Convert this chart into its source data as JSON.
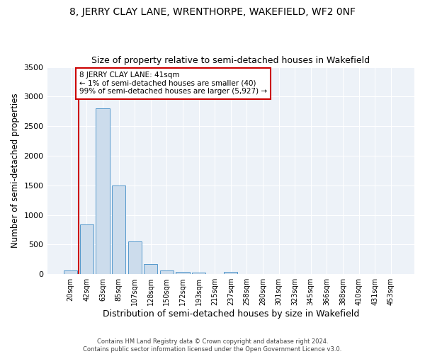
{
  "title": "8, JERRY CLAY LANE, WRENTHORPE, WAKEFIELD, WF2 0NF",
  "subtitle": "Size of property relative to semi-detached houses in Wakefield",
  "xlabel": "Distribution of semi-detached houses by size in Wakefield",
  "ylabel": "Number of semi-detached properties",
  "categories": [
    "20sqm",
    "42sqm",
    "63sqm",
    "85sqm",
    "107sqm",
    "128sqm",
    "150sqm",
    "172sqm",
    "193sqm",
    "215sqm",
    "237sqm",
    "258sqm",
    "280sqm",
    "301sqm",
    "323sqm",
    "345sqm",
    "366sqm",
    "388sqm",
    "410sqm",
    "431sqm",
    "453sqm"
  ],
  "values": [
    62,
    840,
    2800,
    1500,
    555,
    175,
    62,
    40,
    30,
    0,
    35,
    0,
    0,
    0,
    0,
    0,
    0,
    0,
    0,
    0,
    0
  ],
  "bar_color": "#ccdcec",
  "bar_edge_color": "#5599cc",
  "annotation_text": "8 JERRY CLAY LANE: 41sqm\n← 1% of semi-detached houses are smaller (40)\n99% of semi-detached houses are larger (5,927) →",
  "annotation_box_color": "#ffffff",
  "annotation_border_color": "#cc0000",
  "property_line_color": "#cc0000",
  "background_color": "#edf2f8",
  "ylim": [
    0,
    3500
  ],
  "yticks": [
    0,
    500,
    1000,
    1500,
    2000,
    2500,
    3000,
    3500
  ],
  "footer": "Contains HM Land Registry data © Crown copyright and database right 2024.\nContains public sector information licensed under the Open Government Licence v3.0.",
  "title_fontsize": 10,
  "subtitle_fontsize": 9,
  "ylabel_fontsize": 8.5,
  "xlabel_fontsize": 9
}
